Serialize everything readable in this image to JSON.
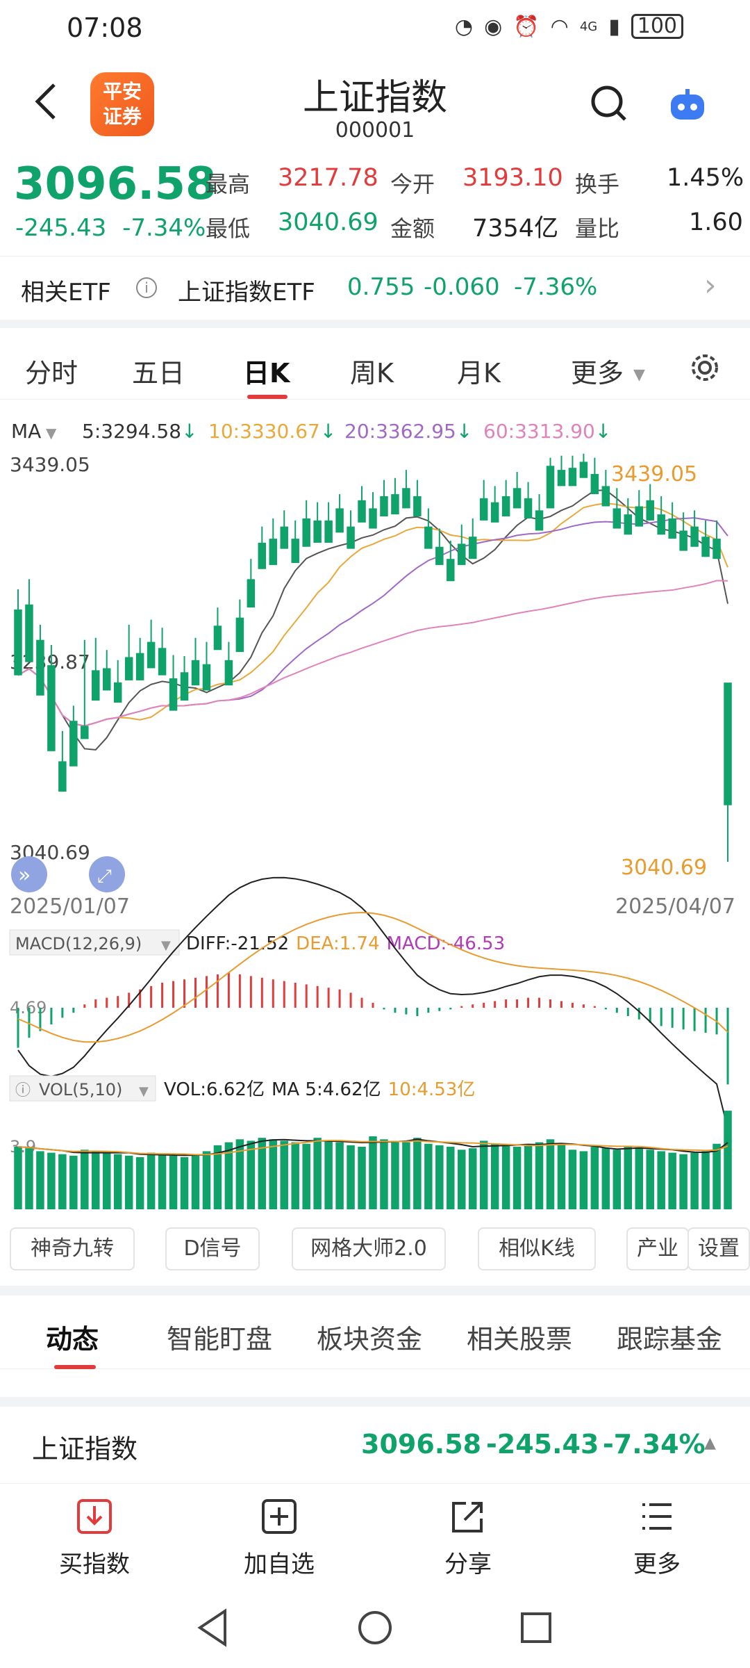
{
  "status": {
    "time": "07:08",
    "network": "4G",
    "battery": "100"
  },
  "header": {
    "title": "上证指数",
    "code": "000001",
    "logo_line1": "平安",
    "logo_line2": "证券"
  },
  "quote": {
    "price": "3096.58",
    "change": "-245.43",
    "change_pct": "-7.34%",
    "high_label": "最高",
    "high": "3217.78",
    "open_label": "今开",
    "open": "3193.10",
    "turnover_label": "换手",
    "turnover": "1.45%",
    "low_label": "最低",
    "low": "3040.69",
    "amount_label": "金额",
    "amount": "7354亿",
    "volume_ratio_label": "量比",
    "volume_ratio": "1.60"
  },
  "etf": {
    "label": "相关ETF",
    "name": "上证指数ETF",
    "price": "0.755",
    "change": "-0.060",
    "pct": "-7.36%"
  },
  "period_tabs": [
    "分时",
    "五日",
    "日K",
    "周K",
    "月K",
    "更多"
  ],
  "active_period": "日K",
  "chart_data": {
    "type": "candlestick",
    "ma_label": "MA",
    "ma": [
      {
        "name": "5",
        "value": "3294.58",
        "color": "#555555"
      },
      {
        "name": "10",
        "value": "3330.67",
        "color": "#e8a93a"
      },
      {
        "name": "20",
        "value": "3362.95",
        "color": "#a069c6"
      },
      {
        "name": "60",
        "value": "3313.90",
        "color": "#e083b9"
      }
    ],
    "y_labels": [
      "3439.05",
      "3239.87",
      "3040.69"
    ],
    "high_marker": "3439.05",
    "low_marker": "3040.69",
    "ylim": [
      3040.69,
      3439.05
    ],
    "x_start": "2025/01/07",
    "x_end": "2025/04/07",
    "macd": {
      "label": "MACD(12,26,9)",
      "diff_label": "DIFF:",
      "diff": "-21.52",
      "dea_label": "DEA:",
      "dea": "1.74",
      "macd_label": "MACD:",
      "macd": "-46.53",
      "axis_label": "4.69"
    },
    "vol": {
      "label": "VOL(5,10)",
      "vol_label": "VOL:",
      "vol": "6.62亿",
      "ma5_label": "MA 5:",
      "ma5": "4.62亿",
      "ma10_label": "10:",
      "ma10": "4.53亿",
      "axis_label": "3.9"
    },
    "candles": [
      [
        3290,
        3310,
        3250,
        3225
      ],
      [
        3295,
        3320,
        3245,
        3238
      ],
      [
        3260,
        3275,
        3210,
        3205
      ],
      [
        3235,
        3255,
        3160,
        3150
      ],
      [
        3140,
        3170,
        3120,
        3110
      ],
      [
        3180,
        3195,
        3140,
        3135
      ],
      [
        3175,
        3260,
        3170,
        3162
      ],
      [
        3230,
        3262,
        3208,
        3200
      ],
      [
        3232,
        3250,
        3215,
        3210
      ],
      [
        3218,
        3240,
        3204,
        3198
      ],
      [
        3243,
        3275,
        3228,
        3220
      ],
      [
        3247,
        3262,
        3224,
        3220
      ],
      [
        3258,
        3280,
        3238,
        3232
      ],
      [
        3252,
        3272,
        3236,
        3225
      ],
      [
        3222,
        3245,
        3198,
        3190
      ],
      [
        3228,
        3244,
        3209,
        3200
      ],
      [
        3240,
        3262,
        3224,
        3215
      ],
      [
        3236,
        3258,
        3219,
        3210
      ],
      [
        3274,
        3292,
        3256,
        3250
      ],
      [
        3240,
        3258,
        3220,
        3215
      ],
      [
        3282,
        3300,
        3256,
        3248
      ],
      [
        3320,
        3340,
        3300,
        3292
      ],
      [
        3356,
        3372,
        3338,
        3330
      ],
      [
        3360,
        3380,
        3340,
        3334
      ],
      [
        3372,
        3388,
        3355,
        3350
      ],
      [
        3360,
        3378,
        3342,
        3336
      ],
      [
        3380,
        3398,
        3360,
        3352
      ],
      [
        3378,
        3396,
        3362,
        3356
      ],
      [
        3378,
        3396,
        3364,
        3356
      ],
      [
        3390,
        3404,
        3370,
        3366
      ],
      [
        3372,
        3388,
        3355,
        3350
      ],
      [
        3398,
        3412,
        3382,
        3376
      ],
      [
        3390,
        3406,
        3376,
        3370
      ],
      [
        3402,
        3418,
        3388,
        3382
      ],
      [
        3404,
        3420,
        3390,
        3384
      ],
      [
        3410,
        3428,
        3396,
        3390
      ],
      [
        3402,
        3418,
        3388,
        3382
      ],
      [
        3372,
        3390,
        3356,
        3350
      ],
      [
        3352,
        3370,
        3340,
        3334
      ],
      [
        3340,
        3358,
        3324,
        3318
      ],
      [
        3355,
        3374,
        3340,
        3334
      ],
      [
        3362,
        3380,
        3346,
        3340
      ],
      [
        3400,
        3418,
        3384,
        3378
      ],
      [
        3396,
        3412,
        3382,
        3376
      ],
      [
        3402,
        3418,
        3388,
        3382
      ],
      [
        3410,
        3426,
        3396,
        3390
      ],
      [
        3400,
        3416,
        3386,
        3380
      ],
      [
        3388,
        3404,
        3374,
        3368
      ],
      [
        3432,
        3440,
        3396,
        3390
      ],
      [
        3428,
        3442,
        3418,
        3412
      ],
      [
        3430,
        3442,
        3418,
        3412
      ],
      [
        3436,
        3444,
        3426,
        3420
      ],
      [
        3424,
        3440,
        3410,
        3404
      ],
      [
        3412,
        3428,
        3398,
        3392
      ],
      [
        3390,
        3410,
        3376,
        3370
      ],
      [
        3384,
        3400,
        3370,
        3364
      ],
      [
        3392,
        3408,
        3378,
        3372
      ],
      [
        3398,
        3414,
        3384,
        3378
      ],
      [
        3384,
        3402,
        3370,
        3364
      ],
      [
        3380,
        3396,
        3366,
        3360
      ],
      [
        3368,
        3386,
        3354,
        3348
      ],
      [
        3372,
        3388,
        3358,
        3352
      ],
      [
        3362,
        3378,
        3348,
        3342
      ],
      [
        3360,
        3378,
        3346,
        3340
      ],
      [
        3217.78,
        3040.69,
        3193.1,
        3096.58
      ]
    ],
    "macd_hist": [
      -24,
      -18,
      -14,
      -10,
      -6,
      -3,
      2,
      5,
      6,
      7,
      9,
      11,
      13,
      15,
      16,
      17,
      18,
      19,
      20,
      21,
      20,
      19,
      18,
      17,
      16,
      15,
      14,
      13,
      12,
      11,
      9,
      6,
      3,
      -1,
      -3,
      -4,
      -5,
      -3,
      -2,
      -1,
      1,
      2,
      3,
      4,
      5,
      5,
      6,
      6,
      5,
      4,
      3,
      2,
      1,
      -1,
      -3,
      -5,
      -7,
      -9,
      -11,
      -12,
      -13,
      -14,
      -15,
      -16,
      -46
    ],
    "vol_values": [
      4.2,
      4.1,
      3.9,
      3.8,
      3.7,
      3.6,
      4.0,
      3.9,
      3.8,
      3.7,
      3.6,
      3.5,
      3.8,
      3.7,
      3.6,
      3.5,
      3.6,
      3.9,
      4.3,
      4.5,
      4.7,
      4.6,
      4.8,
      4.7,
      4.6,
      4.5,
      4.4,
      4.8,
      4.6,
      4.5,
      4.3,
      4.2,
      4.9,
      4.7,
      4.6,
      4.5,
      4.8,
      4.4,
      4.3,
      4.2,
      4.0,
      4.1,
      4.6,
      4.4,
      4.3,
      4.2,
      4.3,
      4.5,
      4.7,
      4.4,
      4.0,
      3.9,
      4.2,
      4.1,
      4.0,
      4.2,
      4.1,
      4.0,
      3.9,
      3.8,
      3.7,
      3.8,
      3.9,
      4.4,
      6.62
    ]
  },
  "feature_buttons": [
    "神奇九转",
    "D信号",
    "网格大师2.0",
    "相似K线",
    "产业",
    "设置"
  ],
  "news_tabs": [
    "动态",
    "智能盯盘",
    "板块资金",
    "相关股票",
    "跟踪基金"
  ],
  "active_news_tab": "动态",
  "ticker": {
    "name": "上证指数",
    "price": "3096.58",
    "change": "-245.43",
    "pct": "-7.34%"
  },
  "actions": [
    "买指数",
    "加自选",
    "分享",
    "更多"
  ]
}
